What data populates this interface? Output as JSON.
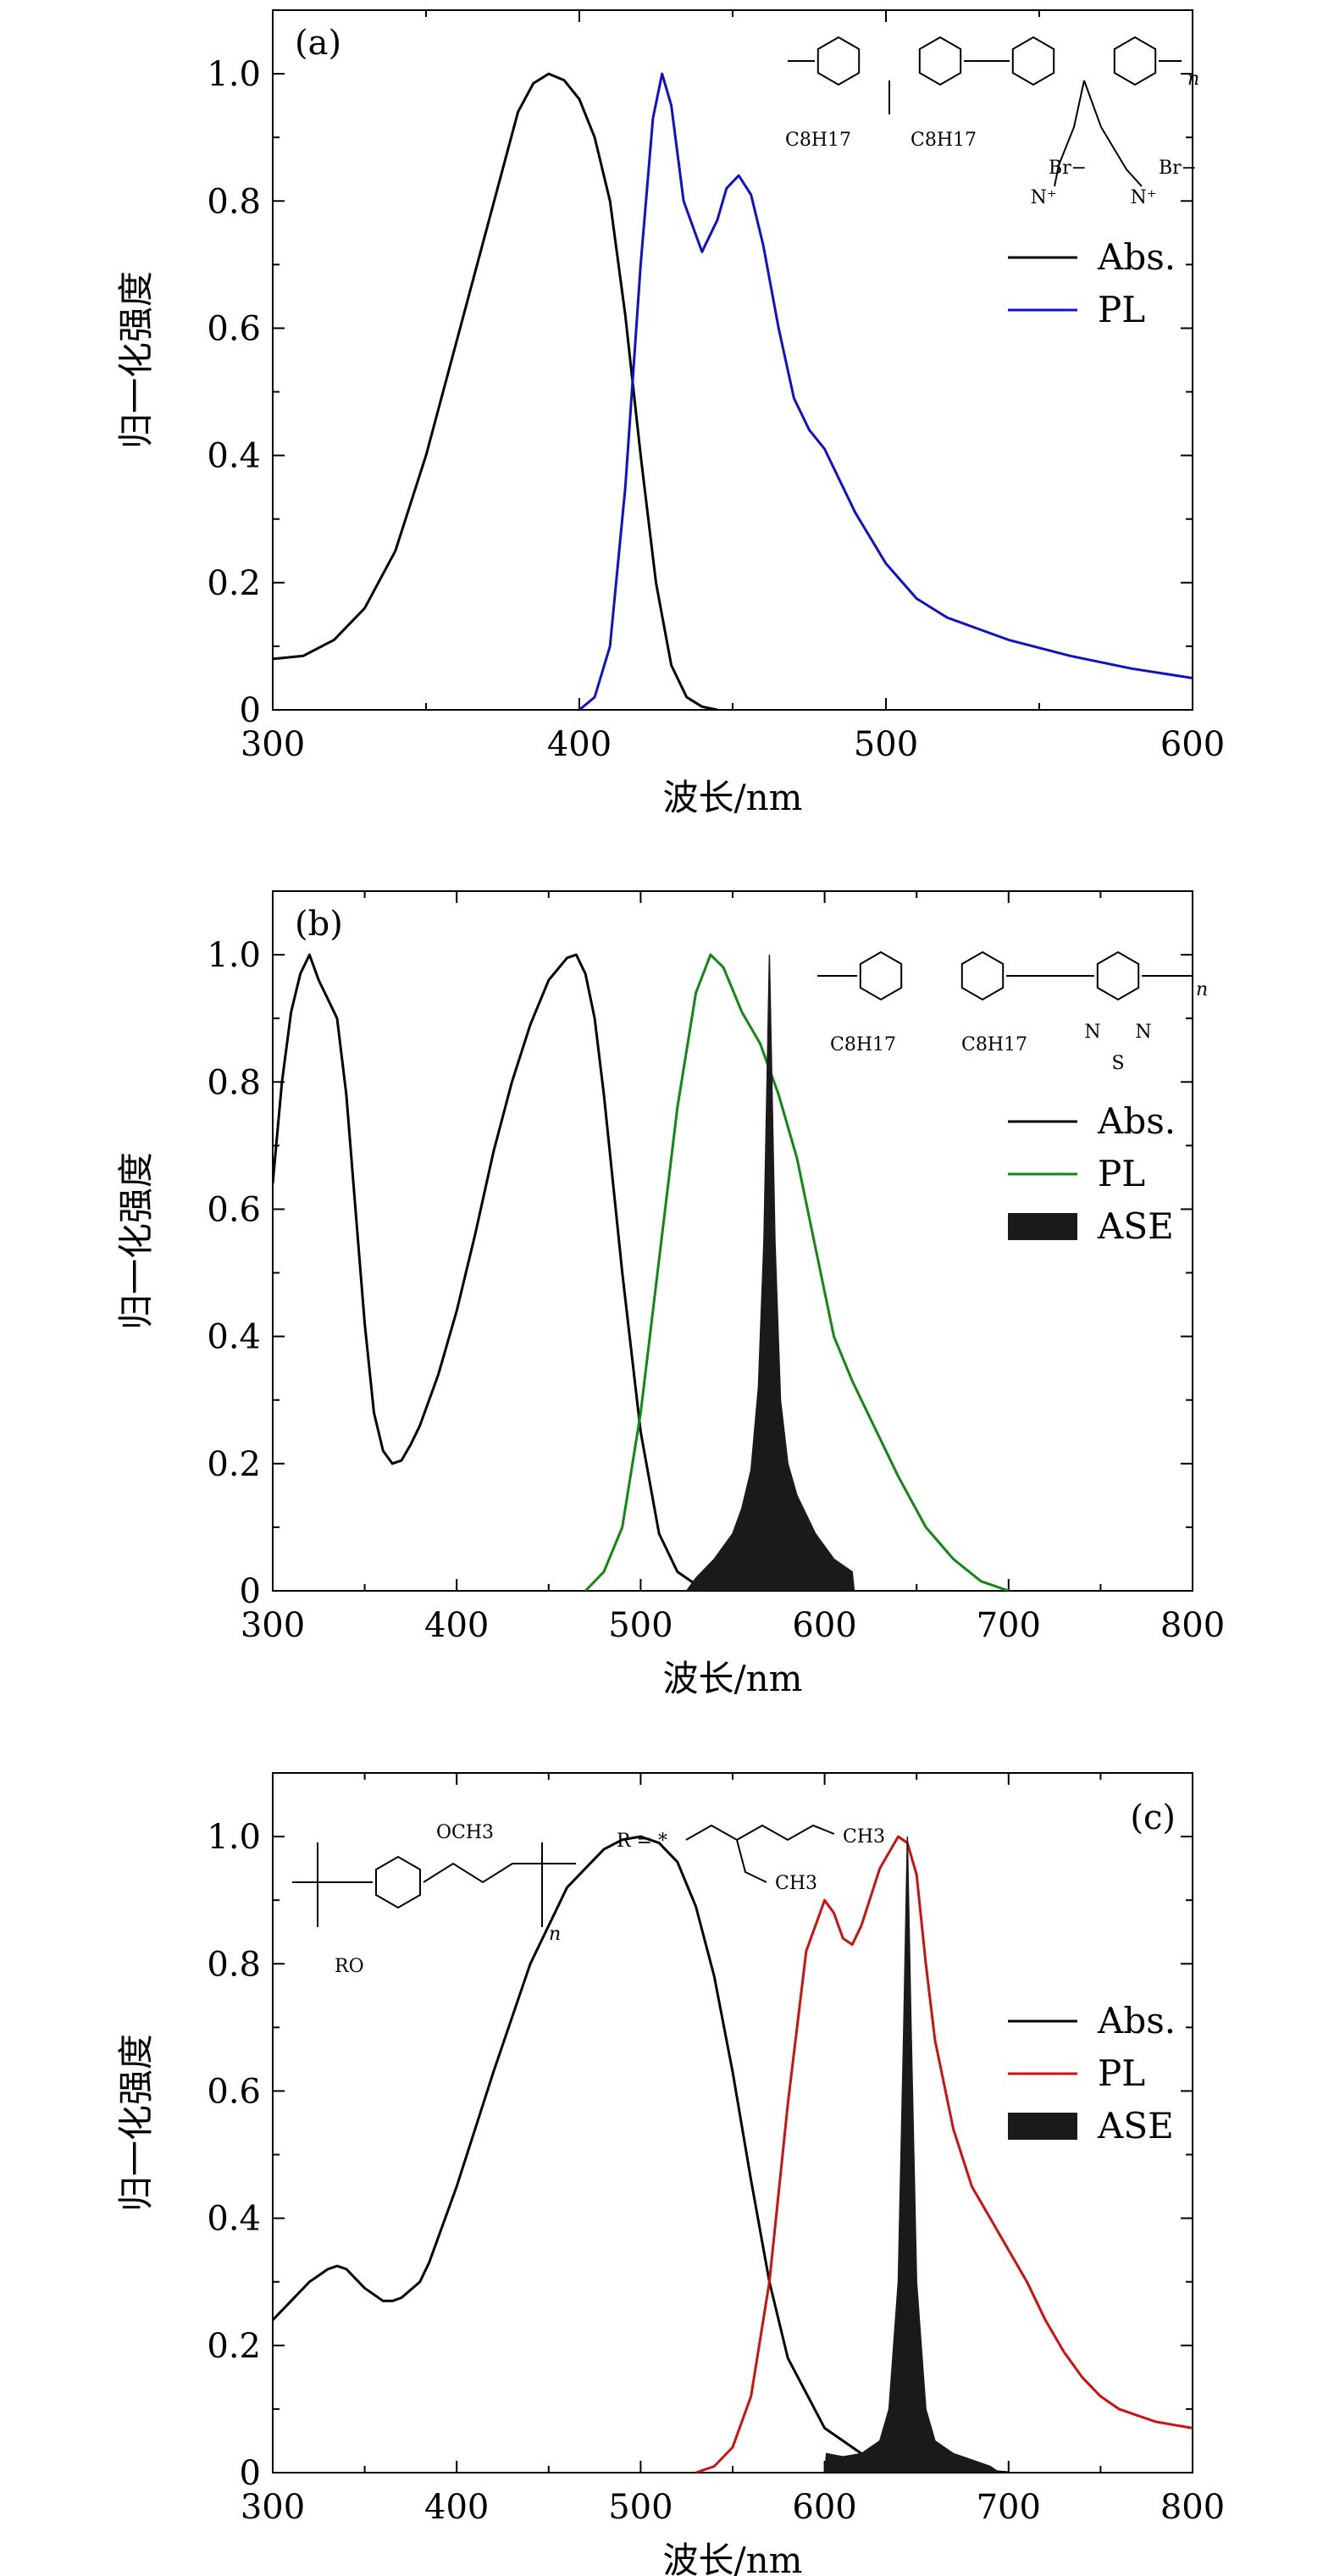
{
  "chart_data": [
    {
      "type": "line",
      "panel_label": "(a)",
      "xlabel": "波长/nm",
      "ylabel": "归一化强度",
      "xlim": [
        300,
        600
      ],
      "ylim": [
        0,
        1.1
      ],
      "xticks": [
        "300",
        "400",
        "500",
        "600"
      ],
      "yticks": [
        "0",
        "0.2",
        "0.4",
        "0.6",
        "0.8",
        "1.0"
      ],
      "legend_position": "right",
      "structure_labels": {
        "sub1": "C8H17",
        "sub2": "C8H17",
        "br1": "Br−",
        "br2": "Br−",
        "n": "n"
      },
      "series": [
        {
          "name": "Abs.",
          "kind": "line",
          "color": "#000000",
          "x": [
            300,
            310,
            320,
            330,
            340,
            350,
            360,
            370,
            375,
            380,
            385,
            390,
            395,
            400,
            405,
            410,
            415,
            420,
            425,
            430,
            435,
            440,
            445
          ],
          "y": [
            0.08,
            0.085,
            0.11,
            0.16,
            0.25,
            0.4,
            0.58,
            0.76,
            0.85,
            0.94,
            0.985,
            1.0,
            0.99,
            0.96,
            0.9,
            0.8,
            0.62,
            0.4,
            0.2,
            0.07,
            0.02,
            0.005,
            0.0
          ]
        },
        {
          "name": "PL",
          "kind": "line",
          "color": "#1010cc",
          "x": [
            400,
            405,
            410,
            415,
            420,
            424,
            427,
            430,
            434,
            440,
            445,
            448,
            452,
            456,
            460,
            465,
            470,
            475,
            480,
            490,
            500,
            510,
            520,
            540,
            560,
            580,
            600
          ],
          "y": [
            0.0,
            0.02,
            0.1,
            0.35,
            0.7,
            0.93,
            1.0,
            0.95,
            0.8,
            0.72,
            0.77,
            0.82,
            0.84,
            0.81,
            0.73,
            0.6,
            0.49,
            0.44,
            0.41,
            0.31,
            0.23,
            0.175,
            0.145,
            0.11,
            0.085,
            0.065,
            0.05
          ]
        }
      ]
    },
    {
      "type": "line",
      "panel_label": "(b)",
      "xlabel": "波长/nm",
      "ylabel": "归一化强度",
      "xlim": [
        300,
        800
      ],
      "ylim": [
        0,
        1.1
      ],
      "xticks": [
        "300",
        "400",
        "500",
        "600",
        "700",
        "800"
      ],
      "yticks": [
        "0",
        "0.2",
        "0.4",
        "0.6",
        "0.8",
        "1.0"
      ],
      "legend_position": "right",
      "structure_labels": {
        "sub1": "C8H17",
        "sub2": "C8H17",
        "atom1": "N",
        "atom2": "N",
        "atom3": "S",
        "n": "n"
      },
      "series": [
        {
          "name": "Abs.",
          "kind": "line",
          "color": "#000000",
          "x": [
            300,
            305,
            310,
            315,
            320,
            325,
            330,
            335,
            340,
            345,
            350,
            355,
            360,
            365,
            370,
            375,
            380,
            390,
            400,
            410,
            420,
            430,
            440,
            450,
            460,
            465,
            470,
            475,
            480,
            490,
            500,
            510,
            520,
            530,
            540
          ],
          "y": [
            0.64,
            0.8,
            0.91,
            0.97,
            1.0,
            0.96,
            0.93,
            0.9,
            0.78,
            0.6,
            0.42,
            0.28,
            0.22,
            0.2,
            0.205,
            0.23,
            0.26,
            0.34,
            0.44,
            0.56,
            0.69,
            0.8,
            0.89,
            0.96,
            0.995,
            1.0,
            0.97,
            0.9,
            0.78,
            0.5,
            0.25,
            0.09,
            0.03,
            0.01,
            0.0
          ]
        },
        {
          "name": "PL",
          "kind": "line",
          "color": "#118811",
          "x": [
            470,
            480,
            490,
            500,
            510,
            520,
            530,
            538,
            545,
            555,
            565,
            575,
            585,
            595,
            605,
            615,
            625,
            640,
            655,
            670,
            685,
            700
          ],
          "y": [
            0.0,
            0.03,
            0.1,
            0.28,
            0.52,
            0.76,
            0.94,
            1.0,
            0.98,
            0.91,
            0.86,
            0.78,
            0.68,
            0.54,
            0.4,
            0.33,
            0.27,
            0.18,
            0.1,
            0.05,
            0.015,
            0.0
          ]
        },
        {
          "name": "ASE",
          "kind": "fill",
          "color": "#1a1a1a",
          "x": [
            525,
            530,
            540,
            550,
            555,
            560,
            564,
            567,
            569,
            570,
            571,
            573,
            576,
            580,
            585,
            590,
            595,
            600,
            605,
            610,
            615,
            616
          ],
          "y": [
            0.0,
            0.02,
            0.05,
            0.09,
            0.13,
            0.19,
            0.32,
            0.55,
            0.85,
            1.0,
            0.85,
            0.55,
            0.3,
            0.2,
            0.15,
            0.12,
            0.09,
            0.07,
            0.05,
            0.04,
            0.03,
            0.0
          ]
        }
      ]
    },
    {
      "type": "line",
      "panel_label": "(c)",
      "xlabel": "波长/nm",
      "ylabel": "归一化强度",
      "xlim": [
        300,
        800
      ],
      "ylim": [
        0,
        1.1
      ],
      "xticks": [
        "300",
        "400",
        "500",
        "600",
        "700",
        "800"
      ],
      "yticks": [
        "0",
        "0.2",
        "0.4",
        "0.6",
        "0.8",
        "1.0"
      ],
      "legend_position": "right",
      "structure_labels": {
        "och3": "OCH3",
        "ro": "RO",
        "r_eq": "R = *",
        "ch3a": "CH3",
        "ch3b": "CH3",
        "n": "n"
      },
      "series": [
        {
          "name": "Abs.",
          "kind": "line",
          "color": "#000000",
          "x": [
            300,
            310,
            320,
            330,
            335,
            340,
            350,
            360,
            365,
            370,
            380,
            385,
            400,
            420,
            440,
            460,
            480,
            490,
            500,
            510,
            520,
            530,
            540,
            550,
            560,
            570,
            580,
            600,
            620,
            650,
            680,
            700
          ],
          "y": [
            0.24,
            0.27,
            0.3,
            0.32,
            0.325,
            0.32,
            0.29,
            0.27,
            0.27,
            0.275,
            0.3,
            0.33,
            0.45,
            0.63,
            0.8,
            0.92,
            0.98,
            0.995,
            1.0,
            0.99,
            0.96,
            0.89,
            0.78,
            0.63,
            0.46,
            0.3,
            0.18,
            0.07,
            0.03,
            0.01,
            0.005,
            0.0
          ]
        },
        {
          "name": "PL",
          "kind": "line",
          "color": "#cc1111",
          "x": [
            530,
            540,
            550,
            560,
            570,
            580,
            590,
            600,
            605,
            610,
            615,
            620,
            630,
            640,
            645,
            650,
            655,
            660,
            670,
            680,
            690,
            700,
            710,
            720,
            730,
            740,
            750,
            760,
            770,
            780,
            790,
            800
          ],
          "y": [
            0.0,
            0.01,
            0.04,
            0.12,
            0.3,
            0.58,
            0.82,
            0.9,
            0.88,
            0.84,
            0.83,
            0.86,
            0.95,
            1.0,
            0.99,
            0.94,
            0.8,
            0.68,
            0.54,
            0.45,
            0.4,
            0.35,
            0.3,
            0.24,
            0.19,
            0.15,
            0.12,
            0.1,
            0.09,
            0.08,
            0.075,
            0.07
          ]
        },
        {
          "name": "ASE",
          "kind": "fill",
          "color": "#1a1a1a",
          "x": [
            600,
            601,
            610,
            620,
            630,
            635,
            640,
            643,
            645,
            647,
            650,
            655,
            660,
            670,
            680,
            690,
            695
          ],
          "y": [
            0.0,
            0.03,
            0.025,
            0.03,
            0.05,
            0.1,
            0.3,
            0.7,
            1.0,
            0.7,
            0.3,
            0.1,
            0.05,
            0.03,
            0.02,
            0.01,
            0.0
          ]
        }
      ]
    }
  ]
}
